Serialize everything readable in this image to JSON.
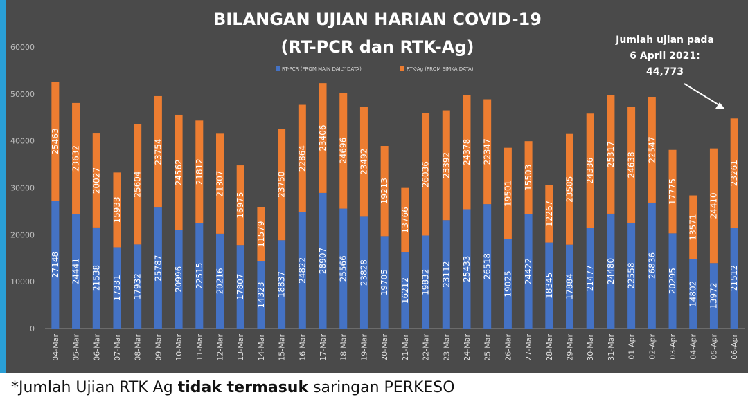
{
  "chart_data": {
    "type": "bar",
    "stacked": true,
    "title": "BILANGAN UJIAN HARIAN COVID-19",
    "subtitle": "(RT-PCR dan RTK-Ag)",
    "ylim": [
      0,
      60000
    ],
    "yticks": [
      "0",
      "10000",
      "20000",
      "30000",
      "40000",
      "50000",
      "60000"
    ],
    "grid": false,
    "legend_position": "top-center",
    "categories": [
      "04-Mar",
      "05-Mar",
      "06-Mar",
      "07-Mar",
      "08-Mar",
      "09-Mar",
      "10-Mar",
      "11-Mar",
      "12-Mar",
      "13-Mar",
      "14-Mar",
      "15-Mar",
      "16-Mar",
      "17-Mar",
      "18-Mar",
      "19-Mar",
      "20-Mar",
      "21-Mar",
      "22-Mar",
      "23-Mar",
      "24-Mar",
      "25-Mar",
      "26-Mar",
      "27-Mar",
      "28-Mar",
      "29-Mar",
      "30-Mar",
      "31-Mar",
      "01-Apr",
      "02-Apr",
      "03-Apr",
      "04-Apr",
      "05-Apr",
      "06-Apr"
    ],
    "series": [
      {
        "name": "RT-PCR (FROM MAIN DAILY DATA)",
        "color": "#4472c4",
        "values": [
          27148,
          24441,
          21538,
          17331,
          17932,
          25787,
          20996,
          22515,
          20216,
          17807,
          14323,
          18837,
          24822,
          28907,
          25566,
          23828,
          19705,
          16212,
          19832,
          23112,
          25433,
          26518,
          19025,
          24422,
          18345,
          17884,
          21477,
          24480,
          22558,
          26836,
          20295,
          14802,
          13972,
          21512
        ]
      },
      {
        "name": "RTK-Ag (FROM SIMKA DATA)",
        "color": "#ed7d31",
        "values": [
          25463,
          23632,
          20027,
          15933,
          25604,
          23754,
          24562,
          21812,
          21307,
          16975,
          11579,
          23750,
          22864,
          23406,
          24696,
          23492,
          19213,
          13766,
          26036,
          23392,
          24378,
          22347,
          19501,
          15503,
          12267,
          23585,
          24336,
          25317,
          24638,
          22547,
          17775,
          13571,
          24410,
          23261
        ]
      }
    ],
    "annotation": {
      "lines": [
        "Jumlah ujian pada",
        "6 April 2021:",
        "44,773"
      ],
      "target_category": "06-Apr"
    }
  },
  "footnote": {
    "prefix": "*Jumlah Ujian RTK Ag ",
    "bold": "tidak termasuk",
    "suffix": " saringan PERKESO"
  }
}
